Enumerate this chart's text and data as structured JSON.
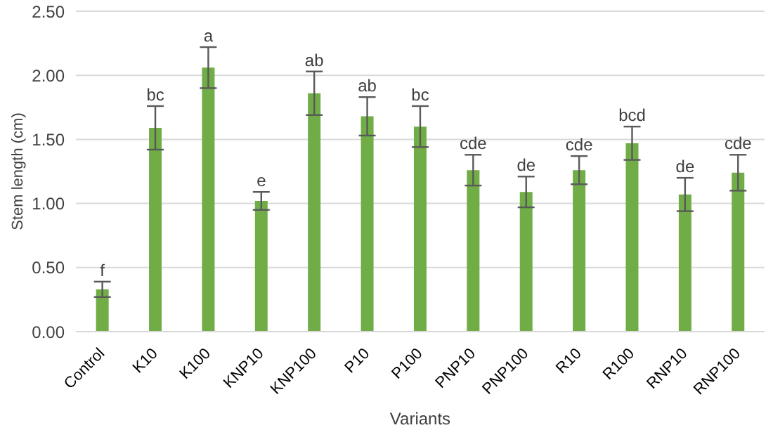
{
  "chart_data": {
    "type": "bar",
    "xlabel": "Variants",
    "ylabel": "Stem length (cm)",
    "categories": [
      "Control",
      "K10",
      "K100",
      "KNP10",
      "KNP100",
      "P10",
      "P100",
      "PNP10",
      "PNP100",
      "R10",
      "R100",
      "RNP10",
      "RNP100"
    ],
    "values": [
      0.33,
      1.59,
      2.06,
      1.02,
      1.86,
      1.68,
      1.6,
      1.26,
      1.09,
      1.26,
      1.47,
      1.07,
      1.24
    ],
    "errors": [
      0.06,
      0.17,
      0.16,
      0.07,
      0.17,
      0.15,
      0.16,
      0.12,
      0.12,
      0.11,
      0.13,
      0.13,
      0.14
    ],
    "color": "#70ad47",
    "ylim": [
      0,
      2.5
    ],
    "yticks": [
      {
        "value": 0,
        "label": "0.00"
      },
      {
        "value": 0.5,
        "label": "0.50"
      },
      {
        "value": 1,
        "label": "1.00"
      },
      {
        "value": 1.5,
        "label": "1.50"
      },
      {
        "value": 2,
        "label": "2.00"
      },
      {
        "value": 2.5,
        "label": "2.50"
      }
    ],
    "grid": "y",
    "annotations": [
      {
        "text": "f",
        "x": "Control",
        "y": 0.39
      },
      {
        "text": "bc",
        "x": "K10",
        "y": 1.76
      },
      {
        "text": "a",
        "x": "K100",
        "y": 2.22
      },
      {
        "text": "e",
        "x": "KNP10",
        "y": 1.09
      },
      {
        "text": "ab",
        "x": "KNP100",
        "y": 2.03
      },
      {
        "text": "ab",
        "x": "P10",
        "y": 1.83
      },
      {
        "text": "bc",
        "x": "P100",
        "y": 1.76
      },
      {
        "text": "cde",
        "x": "PNP10",
        "y": 1.38
      },
      {
        "text": "de",
        "x": "PNP100",
        "y": 1.21
      },
      {
        "text": "cde",
        "x": "R10",
        "y": 1.37
      },
      {
        "text": "bcd",
        "x": "R100",
        "y": 1.6
      },
      {
        "text": "de",
        "x": "RNP10",
        "y": 1.2
      },
      {
        "text": "cde",
        "x": "RNP100",
        "y": 1.38
      }
    ]
  }
}
